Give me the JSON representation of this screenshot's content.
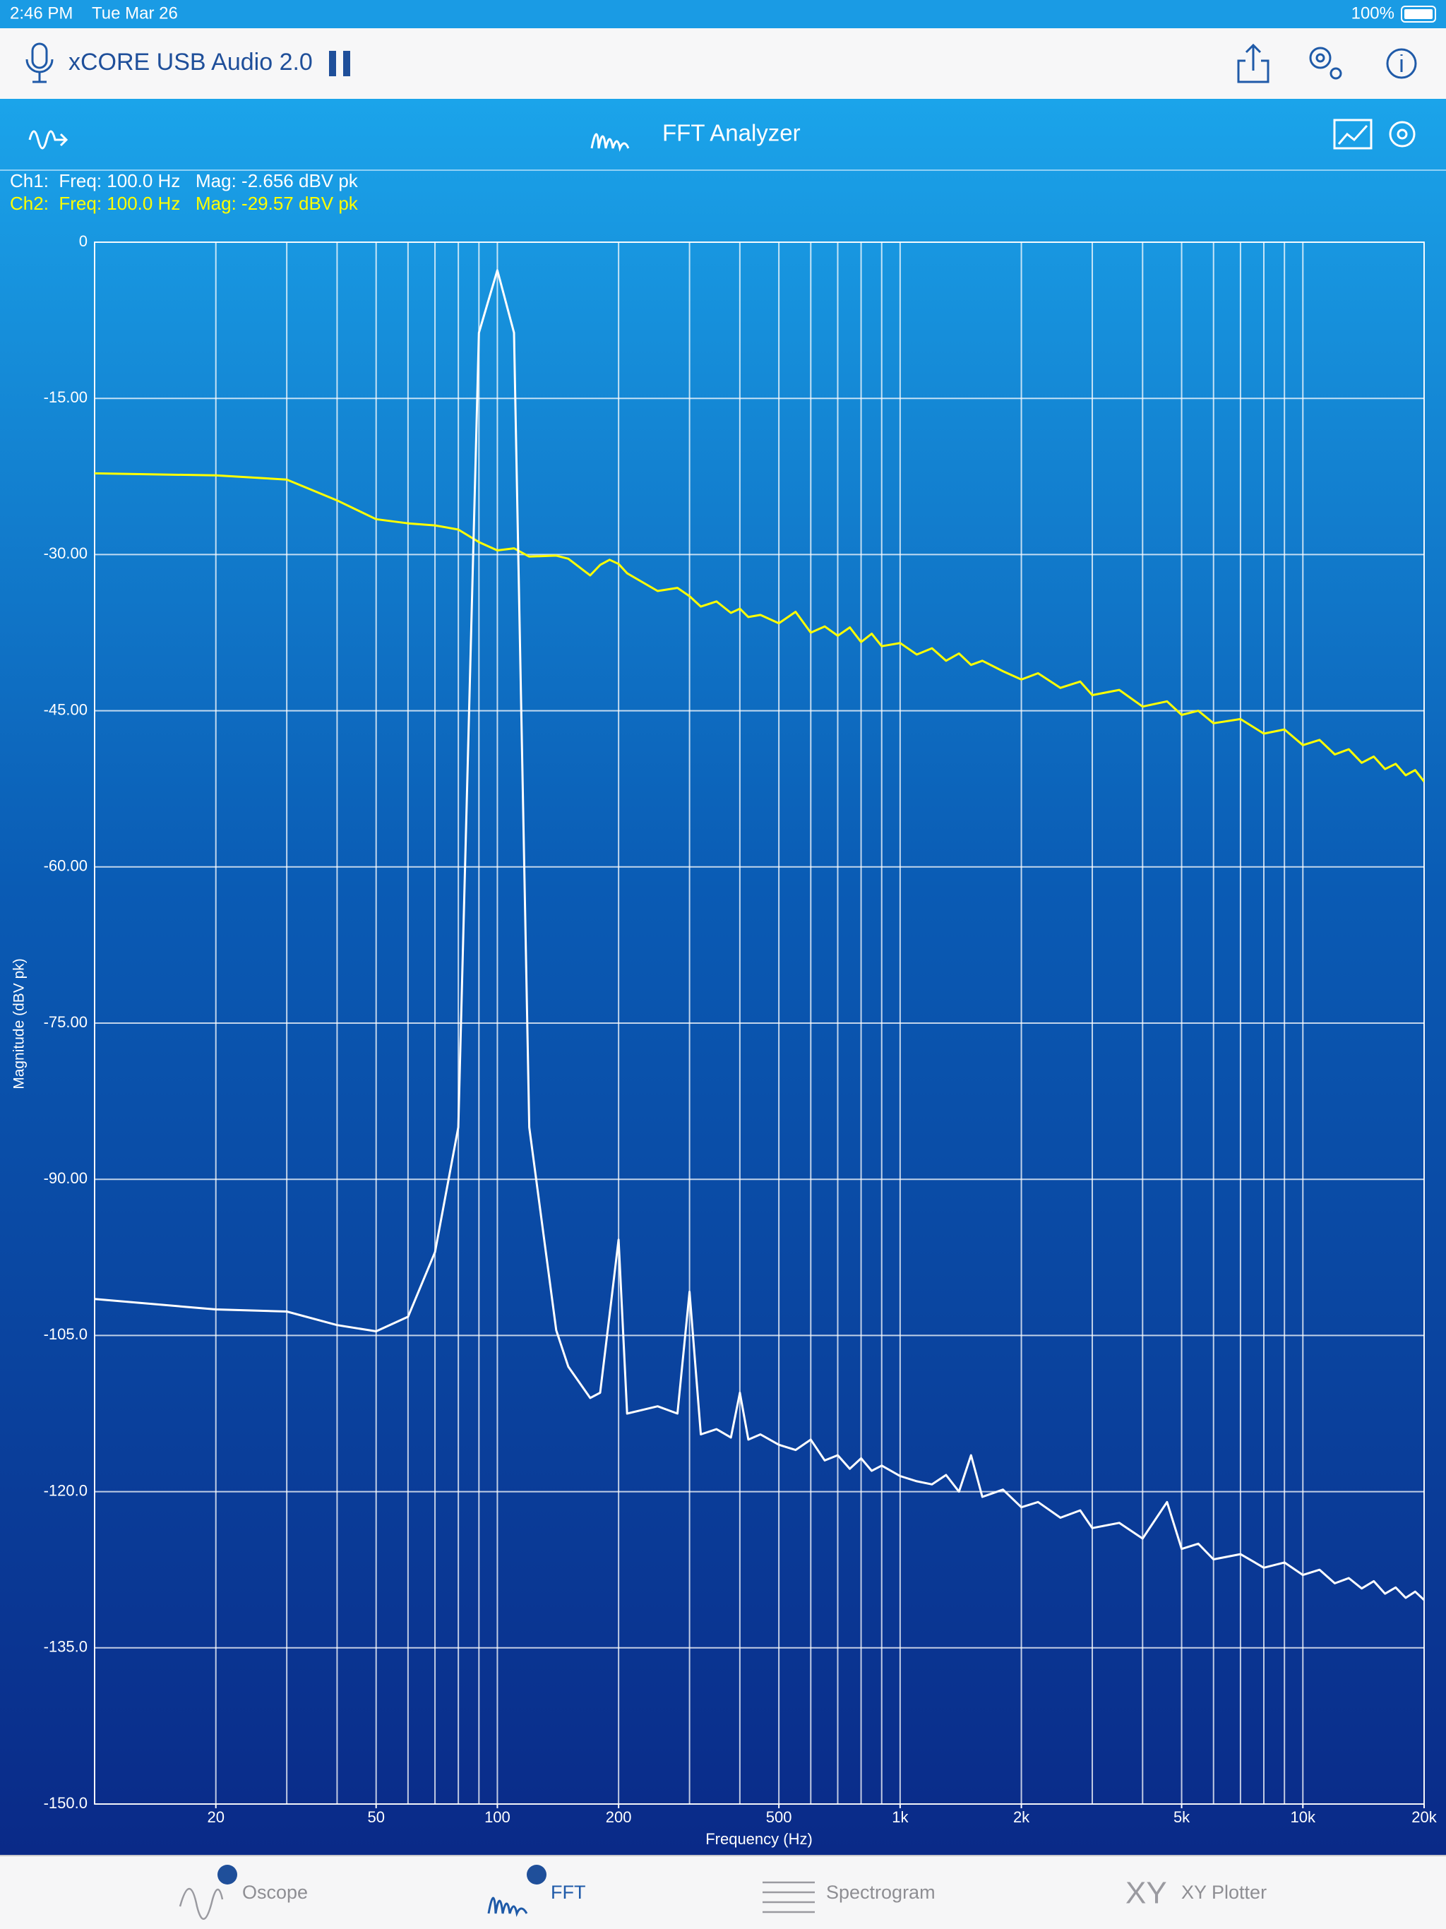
{
  "status_bar": {
    "time": "2:46 PM",
    "date": "Tue Mar 26",
    "battery": "100%"
  },
  "nav_bar": {
    "title": "xCORE USB Audio 2.0"
  },
  "toolbar": {
    "title": "FFT Analyzer"
  },
  "readout": {
    "ch1": "Ch1:  Freq: 100.0 Hz   Mag: -2.656 dBV pk",
    "ch2": "Ch2:  Freq: 100.0 Hz   Mag: -29.57 dBV pk"
  },
  "chart_data": {
    "type": "line",
    "x_label": "Frequency (Hz)",
    "y_label": "Magnitude (dBV pk)",
    "x_scale": "log",
    "xlim": [
      10,
      20000
    ],
    "ylim": [
      -150,
      0
    ],
    "xticks": [
      20,
      50,
      100,
      200,
      500,
      {
        "value": 1000,
        "label": "1k"
      },
      {
        "value": 2000,
        "label": "2k"
      },
      {
        "value": 5000,
        "label": "5k"
      },
      {
        "value": 10000,
        "label": "10k"
      },
      {
        "value": 20000,
        "label": "20k"
      }
    ],
    "x_gridlines": [
      10,
      20,
      30,
      40,
      50,
      60,
      70,
      80,
      90,
      100,
      200,
      300,
      400,
      500,
      600,
      700,
      800,
      900,
      1000,
      2000,
      3000,
      4000,
      5000,
      6000,
      7000,
      8000,
      9000,
      10000,
      20000
    ],
    "yticks": [
      0,
      {
        "value": -15,
        "label": "-15.00"
      },
      {
        "value": -30,
        "label": "-30.00"
      },
      {
        "value": -45,
        "label": "-45.00"
      },
      {
        "value": -60,
        "label": "-60.00"
      },
      {
        "value": -75,
        "label": "-75.00"
      },
      {
        "value": -90,
        "label": "-90.00"
      },
      {
        "value": -105,
        "label": "-105.0"
      },
      {
        "value": -120,
        "label": "-120.0"
      },
      {
        "value": -135,
        "label": "-135.0"
      },
      {
        "value": -150,
        "label": "-150.0"
      }
    ],
    "grid": true,
    "x": [
      10,
      20,
      30,
      40,
      50,
      60,
      70,
      80,
      90,
      100,
      110,
      120,
      140,
      150,
      170,
      180,
      190,
      200,
      210,
      250,
      280,
      300,
      320,
      350,
      380,
      400,
      420,
      450,
      500,
      550,
      600,
      650,
      700,
      750,
      800,
      850,
      900,
      1000,
      1100,
      1200,
      1300,
      1400,
      1500,
      1600,
      1800,
      2000,
      2200,
      2500,
      2800,
      3000,
      3500,
      4000,
      4600,
      5000,
      5500,
      6000,
      7000,
      8000,
      9000,
      10000,
      11000,
      12000,
      13000,
      14000,
      15000,
      16000,
      17000,
      18000,
      19000,
      20000
    ],
    "series": [
      {
        "color": "#ffff00",
        "values": [
          -22.2,
          -22.4,
          -22.8,
          -24.8,
          -26.6,
          -27,
          -27.2,
          -27.6,
          -28.8,
          -29.6,
          -29.4,
          -30.2,
          -30.1,
          -30.4,
          -32,
          -31,
          -30.5,
          -30.9,
          -31.8,
          -33.5,
          -33.2,
          -34,
          -35,
          -34.5,
          -35.6,
          -35.2,
          -36,
          -35.8,
          -36.6,
          -35.5,
          -37.5,
          -36.9,
          -37.8,
          -37,
          -38.4,
          -37.6,
          -38.8,
          -38.5,
          -39.6,
          -39,
          -40.2,
          -39.5,
          -40.6,
          -40.2,
          -41.2,
          -42,
          -41.4,
          -42.8,
          -42.2,
          -43.5,
          -43,
          -44.6,
          -44.1,
          -45.4,
          -45,
          -46.2,
          -45.8,
          -47.2,
          -46.8,
          -48.3,
          -47.8,
          -49.2,
          -48.7,
          -50,
          -49.4,
          -50.6,
          -50.1,
          -51.2,
          -50.7,
          -51.8
        ]
      },
      {
        "color": "#ffffff",
        "values": [
          -101.5,
          -102.5,
          -102.7,
          -104,
          -104.6,
          -103.2,
          -97,
          -85,
          -8.7,
          -2.7,
          -8.7,
          -85,
          -104.5,
          -108,
          -111,
          -110.5,
          -103,
          -95.8,
          -112.5,
          -111.8,
          -112.5,
          -100.8,
          -114.5,
          -114,
          -114.8,
          -110.5,
          -115,
          -114.5,
          -115.5,
          -116,
          -115,
          -117,
          -116.5,
          -117.8,
          -116.8,
          -118,
          -117.5,
          -118.5,
          -119,
          -119.3,
          -118.4,
          -120,
          -116.5,
          -120.5,
          -119.8,
          -121.5,
          -121,
          -122.5,
          -121.8,
          -123.5,
          -123,
          -124.5,
          -121,
          -125.5,
          -125,
          -126.5,
          -126,
          -127.3,
          -126.8,
          -128,
          -127.5,
          -128.8,
          -128.3,
          -129.3,
          -128.6,
          -129.8,
          -129.2,
          -130.2,
          -129.6,
          -130.4
        ]
      }
    ]
  },
  "tabs": [
    {
      "label": "Oscope"
    },
    {
      "label": "FFT"
    },
    {
      "label": "Spectrogram"
    },
    {
      "icon": "XY",
      "label": "XY Plotter"
    }
  ]
}
